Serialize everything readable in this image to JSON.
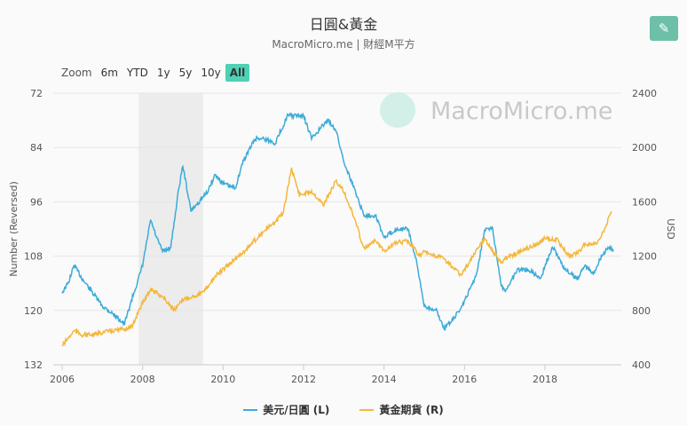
{
  "title": "日圓&黃金",
  "subtitle": "MacroMicro.me | 財經M平方",
  "watermark": "MacroMicro.me",
  "edit_icon": "pencil-icon",
  "zoom": {
    "label": "Zoom",
    "buttons": [
      "6m",
      "YTD",
      "1y",
      "5y",
      "10y",
      "All"
    ],
    "active": "All"
  },
  "chart_data": {
    "type": "line",
    "title": "日圓&黃金",
    "subtitle": "MacroMicro.me | 財經M平方",
    "x_ticks": [
      "2006",
      "2008",
      "2010",
      "2012",
      "2014",
      "2016",
      "2018"
    ],
    "xlim": [
      2006,
      2019.85
    ],
    "left_axis": {
      "label": "Number (Reversed)",
      "reversed": true,
      "ylim": [
        72,
        132
      ],
      "ticks": [
        72,
        84,
        96,
        108,
        120,
        132
      ]
    },
    "right_axis": {
      "label": "USD",
      "ylim": [
        400,
        2400
      ],
      "ticks": [
        400,
        800,
        1200,
        1600,
        2000,
        2400
      ]
    },
    "grid": true,
    "shaded_band": [
      2007.9,
      2009.5
    ],
    "legend_position": "bottom",
    "series": [
      {
        "name": "美元/日圓 (L)",
        "axis": "left",
        "color": "#3cabd8",
        "x": [
          2006.0,
          2006.15,
          2006.3,
          2006.5,
          2006.75,
          2007.0,
          2007.3,
          2007.55,
          2007.75,
          2007.9,
          2008.0,
          2008.2,
          2008.35,
          2008.5,
          2008.7,
          2008.9,
          2009.0,
          2009.2,
          2009.4,
          2009.6,
          2009.8,
          2010.0,
          2010.3,
          2010.5,
          2010.8,
          2011.0,
          2011.3,
          2011.6,
          2011.8,
          2012.0,
          2012.2,
          2012.4,
          2012.6,
          2012.8,
          2013.0,
          2013.3,
          2013.5,
          2013.8,
          2014.0,
          2014.3,
          2014.6,
          2014.8,
          2015.0,
          2015.3,
          2015.5,
          2015.8,
          2016.0,
          2016.3,
          2016.5,
          2016.7,
          2016.9,
          2017.0,
          2017.3,
          2017.6,
          2017.9,
          2018.0,
          2018.2,
          2018.5,
          2018.8,
          2019.0,
          2019.2,
          2019.4,
          2019.6,
          2019.7
        ],
        "values": [
          116,
          114,
          110,
          113,
          116,
          119,
          121,
          123,
          117,
          113,
          110,
          100,
          104,
          107,
          106,
          93,
          88,
          98,
          96,
          94,
          90,
          92,
          93,
          87,
          82,
          82,
          83,
          77,
          77,
          77,
          82,
          80,
          78,
          80,
          87,
          94,
          99,
          99,
          104,
          102,
          102,
          109,
          119,
          120,
          124,
          121,
          118,
          112,
          102,
          102,
          114,
          116,
          111,
          111,
          113,
          110,
          106,
          111,
          113,
          110,
          112,
          108,
          106,
          107
        ]
      },
      {
        "name": "黃金期貨 (R)",
        "axis": "right",
        "color": "#f3b83b",
        "x": [
          2006.0,
          2006.3,
          2006.5,
          2006.8,
          2007.0,
          2007.5,
          2007.75,
          2007.9,
          2008.2,
          2008.5,
          2008.8,
          2009.0,
          2009.5,
          2009.8,
          2010.0,
          2010.5,
          2011.0,
          2011.3,
          2011.5,
          2011.7,
          2011.9,
          2012.2,
          2012.5,
          2012.8,
          2013.0,
          2013.3,
          2013.5,
          2013.8,
          2014.0,
          2014.3,
          2014.6,
          2014.9,
          2015.0,
          2015.5,
          2015.9,
          2016.0,
          2016.5,
          2016.9,
          2017.0,
          2017.5,
          2017.8,
          2018.0,
          2018.3,
          2018.6,
          2018.8,
          2019.0,
          2019.3,
          2019.5,
          2019.65
        ],
        "values": [
          540,
          650,
          620,
          620,
          640,
          660,
          680,
          800,
          960,
          900,
          800,
          880,
          930,
          1050,
          1100,
          1230,
          1380,
          1450,
          1520,
          1850,
          1650,
          1680,
          1580,
          1750,
          1680,
          1450,
          1250,
          1320,
          1240,
          1300,
          1310,
          1200,
          1230,
          1180,
          1060,
          1100,
          1330,
          1150,
          1180,
          1250,
          1290,
          1330,
          1320,
          1200,
          1220,
          1290,
          1290,
          1410,
          1530
        ]
      }
    ]
  }
}
